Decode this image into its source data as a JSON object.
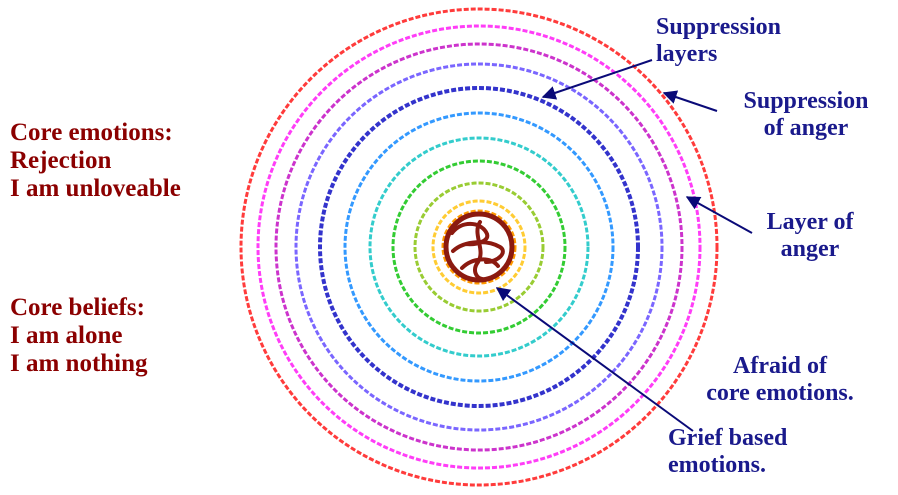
{
  "colors": {
    "left_text": "#8B0000",
    "right_text": "#1A1A8C",
    "arrows": "#0A0A78",
    "core": "#8B1A10",
    "rings": [
      "#FF3B3B",
      "#FF3DF7",
      "#CC33CC",
      "#7A66FF",
      "#3333CC",
      "#3399FF",
      "#33CCCC",
      "#33CC33",
      "#99CC33",
      "#FFCC33",
      "#FF9900"
    ]
  },
  "left": {
    "core_emotions": {
      "heading": "Core emotions:",
      "lines": [
        "Rejection",
        "I am unloveable"
      ]
    },
    "core_beliefs": {
      "heading": "Core beliefs:",
      "lines": [
        "I am alone",
        "I am nothing"
      ]
    }
  },
  "right": {
    "suppression_layers": [
      "Suppression",
      "layers"
    ],
    "suppression_of_anger": [
      "Suppression",
      "of anger"
    ],
    "layer_of_anger": [
      "Layer of",
      "anger"
    ],
    "afraid": [
      "Afraid of",
      "core emotions."
    ],
    "grief": [
      "Grief based",
      "emotions."
    ]
  },
  "core_symbol": "core-swirl-icon"
}
